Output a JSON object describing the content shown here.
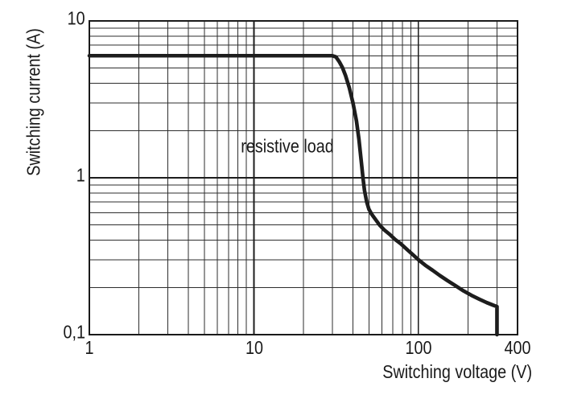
{
  "page": {
    "background": "#ffffff"
  },
  "chart_data": {
    "type": "line",
    "title": "",
    "x_axis": {
      "label": "Switching voltage (V)",
      "scale": "log",
      "min": 1,
      "max": 400,
      "ticks": [
        {
          "value": 1,
          "label": "1"
        },
        {
          "value": 10,
          "label": "10"
        },
        {
          "value": 100,
          "label": "100"
        },
        {
          "value": 400,
          "label": "400"
        }
      ],
      "minor_gridlines": [
        2,
        3,
        4,
        5,
        6,
        7,
        8,
        9,
        20,
        30,
        40,
        50,
        60,
        70,
        80,
        90,
        200,
        300
      ],
      "major_gridlines": [
        10,
        100
      ]
    },
    "y_axis": {
      "label": "Switching current (A)",
      "scale": "log",
      "min": 0.1,
      "max": 10,
      "ticks": [
        {
          "value": 10,
          "label": "10"
        },
        {
          "value": 1,
          "label": "1"
        },
        {
          "value": 0.1,
          "label": "0,1"
        }
      ],
      "minor_gridlines": [
        0.2,
        0.3,
        0.4,
        0.5,
        0.6,
        0.7,
        0.8,
        0.9,
        2,
        3,
        4,
        5,
        6,
        7,
        8,
        9
      ],
      "major_gridlines": [
        1
      ]
    },
    "annotation": {
      "text": "resistive load",
      "x": 16,
      "y": 1.58
    },
    "series": [
      {
        "name": "resistive load",
        "color": "#1d1d1d",
        "stroke_width": 4.6,
        "points": [
          [
            1,
            6
          ],
          [
            30,
            6
          ],
          [
            31.5,
            5.9
          ],
          [
            33,
            5.5
          ],
          [
            34.5,
            5.05
          ],
          [
            36,
            4.5
          ],
          [
            38,
            3.75
          ],
          [
            40,
            3.0
          ],
          [
            42,
            2.3
          ],
          [
            43.5,
            1.75
          ],
          [
            45,
            1.25
          ],
          [
            46,
            1.0
          ],
          [
            47,
            0.83
          ],
          [
            48.5,
            0.7
          ],
          [
            50,
            0.63
          ],
          [
            52,
            0.585
          ],
          [
            55,
            0.54
          ],
          [
            58,
            0.5
          ],
          [
            62,
            0.465
          ],
          [
            67,
            0.435
          ],
          [
            72,
            0.405
          ],
          [
            78,
            0.38
          ],
          [
            85,
            0.35
          ],
          [
            92,
            0.325
          ],
          [
            100,
            0.3
          ],
          [
            110,
            0.277
          ],
          [
            122,
            0.257
          ],
          [
            135,
            0.238
          ],
          [
            150,
            0.221
          ],
          [
            168,
            0.205
          ],
          [
            188,
            0.19
          ],
          [
            210,
            0.178
          ],
          [
            235,
            0.168
          ],
          [
            260,
            0.16
          ],
          [
            285,
            0.154
          ],
          [
            300,
            0.151
          ],
          [
            300,
            0.1
          ]
        ]
      }
    ],
    "grid": {
      "minor_color": "#2e2e2e",
      "minor_width": 1,
      "major_color": "#1d1d1d",
      "major_width": 1.6,
      "border_color": "#1a1a1a",
      "border_width": 2
    }
  }
}
